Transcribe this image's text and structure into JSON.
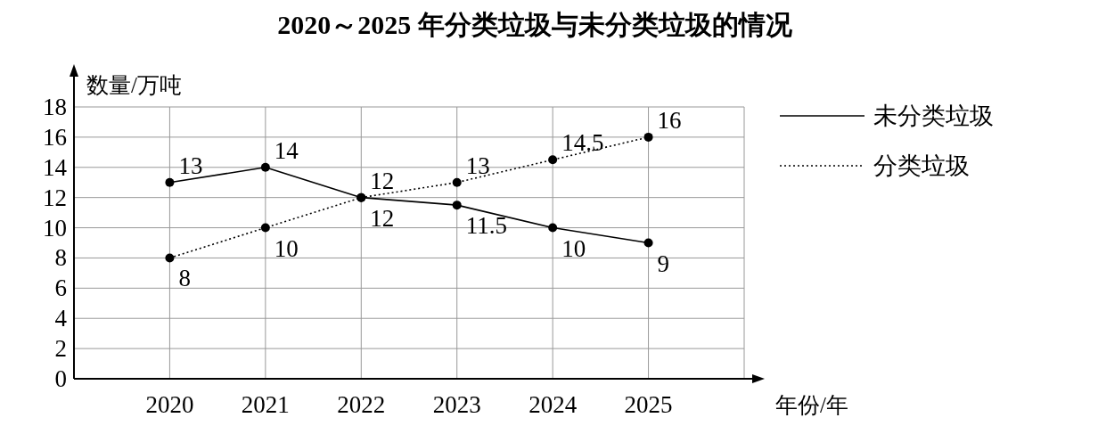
{
  "chart_data": {
    "type": "line",
    "title": "2020～2025 年分类垃圾与未分类垃圾的情况",
    "xlabel": "年份/年",
    "ylabel": "数量/万吨",
    "categories": [
      "2020",
      "2021",
      "2022",
      "2023",
      "2024",
      "2025"
    ],
    "series": [
      {
        "name": "未分类垃圾",
        "color": "#000000",
        "line_style": "solid",
        "values": [
          13,
          14,
          12,
          11.5,
          10,
          9
        ]
      },
      {
        "name": "分类垃圾",
        "color": "#000000",
        "line_style": "dotted",
        "values": [
          8,
          10,
          12,
          13,
          14.5,
          16
        ]
      }
    ],
    "ylim": [
      0,
      18
    ],
    "yticks": [
      0,
      2,
      4,
      6,
      8,
      10,
      12,
      14,
      16,
      18
    ],
    "grid": true,
    "legend": "right",
    "marker": "circle",
    "data_labels": true
  }
}
